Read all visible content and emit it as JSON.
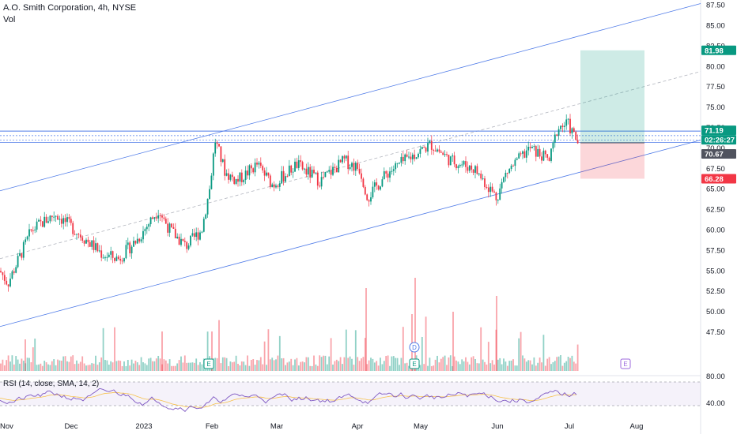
{
  "header": {
    "title": "A.O. Smith Corporation, 4h, NYSE",
    "volume_label": "Vol"
  },
  "chart_data": {
    "type": "candlestick",
    "price_axis": {
      "ticks": [
        45,
        47.5,
        50,
        52.5,
        55,
        57.5,
        60,
        62.5,
        65,
        67.5,
        70,
        72.5,
        75,
        77.5,
        80,
        82.5,
        85,
        87.5
      ],
      "tick_labels": [
        "",
        "47.50",
        "50.00",
        "52.50",
        "55.00",
        "57.50",
        "60.00",
        "62.50",
        "65.00",
        "67.50",
        "70.00",
        "72.50",
        "75.00",
        "77.50",
        "80.00",
        "82.50",
        "85.00",
        "87.50"
      ]
    },
    "time_axis": {
      "labels": [
        "Nov",
        "Dec",
        "2023",
        "Feb",
        "Mar",
        "Apr",
        "May",
        "Jun",
        "Jul",
        "Aug"
      ]
    },
    "price_tags": [
      {
        "value": "81.98",
        "color": "#089981"
      },
      {
        "value": "71.19",
        "color": "#089981"
      },
      {
        "value": "02:26:27",
        "color": "#089981"
      },
      {
        "value": "70.67",
        "color": "#50535e"
      },
      {
        "value": "66.28",
        "color": "#f23645"
      }
    ],
    "position": {
      "entry": 70.67,
      "target": 81.98,
      "stop": 66.28
    },
    "last_price": 71.19,
    "countdown": "02:26:27",
    "events": [
      {
        "label": "E"
      },
      {
        "label": "D"
      },
      {
        "label": "E"
      },
      {
        "label": "E"
      }
    ],
    "rsi": {
      "label": "RSI (14, close, SMA, 14, 2)",
      "ticks": [
        "80.00",
        "40.00"
      ]
    },
    "colors": {
      "up": "#089981",
      "down": "#f23645",
      "channel": "#4f7be8",
      "rsi": "#7e57c2",
      "rsi_ma": "#f7c14b"
    }
  }
}
